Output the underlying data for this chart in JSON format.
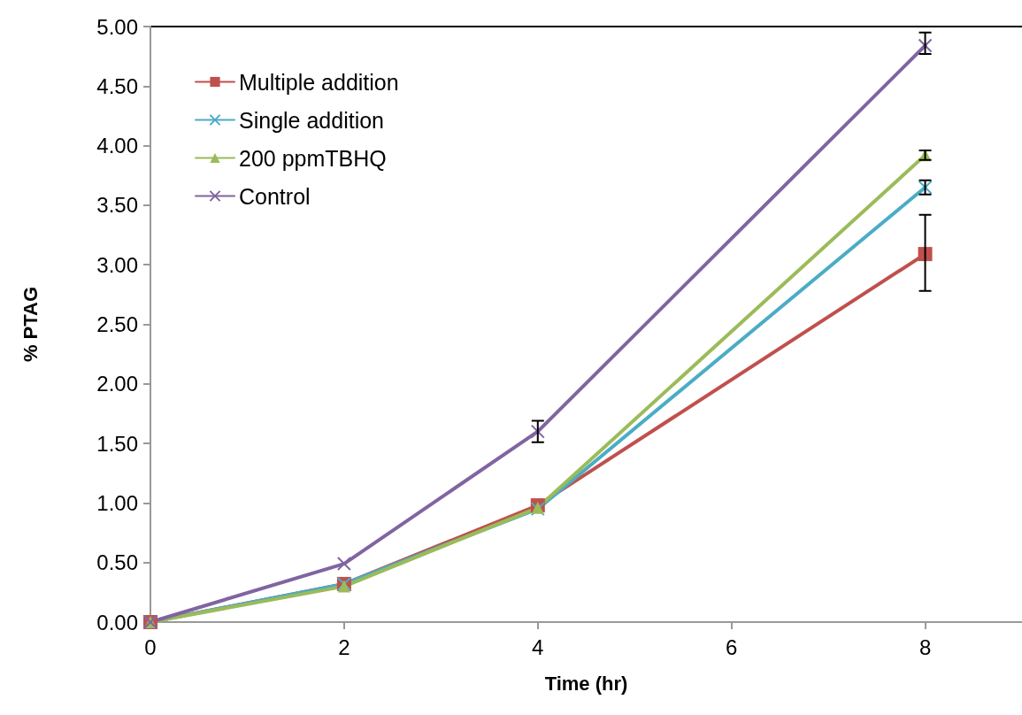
{
  "chart_data": {
    "type": "line",
    "xlabel": "Time (hr)",
    "ylabel": "% PTAG",
    "x": [
      0,
      2,
      4,
      8
    ],
    "xlim": [
      0,
      9
    ],
    "xticks": [
      0,
      2,
      4,
      6,
      8
    ],
    "ylim": [
      0,
      5
    ],
    "yticks": [
      {
        "value": 0,
        "label": "0.00"
      },
      {
        "value": 0.5,
        "label": "0.50"
      },
      {
        "value": 1,
        "label": "1.00"
      },
      {
        "value": 1.5,
        "label": "1.50"
      },
      {
        "value": 2,
        "label": "2.00"
      },
      {
        "value": 2.5,
        "label": "2.50"
      },
      {
        "value": 3,
        "label": "3.00"
      },
      {
        "value": 3.5,
        "label": "3.50"
      },
      {
        "value": 4,
        "label": "4.00"
      },
      {
        "value": 4.5,
        "label": "4.50"
      },
      {
        "value": 5,
        "label": "5.00"
      }
    ],
    "grid": false,
    "legend": "top left",
    "line_style": "solid",
    "series": [
      {
        "name": "Multiple addition",
        "color": "#c0504d",
        "marker": "square",
        "values": [
          0,
          0.32,
          0.98,
          3.09
        ],
        "errors": [
          null,
          null,
          null,
          [
            2.78,
            3.42
          ]
        ]
      },
      {
        "name": "Single addition",
        "color": "#4bacc6",
        "marker": "cross",
        "values": [
          0,
          0.32,
          0.95,
          3.65
        ],
        "errors": [
          null,
          null,
          null,
          [
            3.59,
            3.71
          ]
        ]
      },
      {
        "name": "200 ppmTBHQ",
        "color": "#9bbb59",
        "marker": "triangle",
        "values": [
          0,
          0.3,
          0.96,
          3.92
        ],
        "errors": [
          null,
          null,
          null,
          0.04
        ]
      },
      {
        "name": "Control",
        "color": "#8064a2",
        "marker": "cross",
        "values": [
          0,
          0.49,
          1.6,
          4.84
        ],
        "errors": [
          null,
          null,
          [
            1.51,
            1.69
          ],
          [
            4.77,
            4.95
          ]
        ]
      }
    ]
  }
}
